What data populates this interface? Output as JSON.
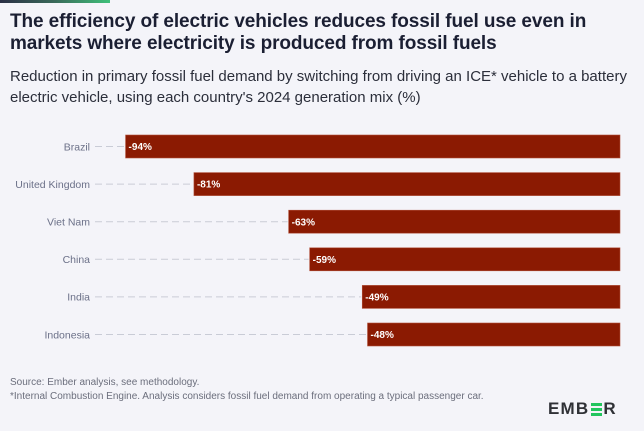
{
  "header": {
    "title": "The efficiency of electric vehicles reduces fossil fuel use even in markets where electricity is produced from fossil fuels",
    "subtitle": "Reduction in primary fossil fuel demand by switching from driving an ICE* vehicle to a battery electric vehicle, using each country's 2024 generation mix (%)"
  },
  "footer": {
    "source": "Source: Ember analysis, see methodology.",
    "note": "*Internal Combustion Engine. Analysis considers fossil fuel demand from operating a typical passenger car."
  },
  "logo": {
    "parts": [
      "EMB",
      "R"
    ],
    "accent_color": "#22c55e"
  },
  "colors": {
    "bar": "#8b1a02",
    "background": "#f4f4f9"
  },
  "chart_data": {
    "type": "bar",
    "orientation": "horizontal",
    "title": "The efficiency of electric vehicles reduces fossil fuel use even in markets where electricity is produced from fossil fuels",
    "subtitle": "Reduction in primary fossil fuel demand by switching from driving an ICE* vehicle to a battery electric vehicle, using each country's 2024 generation mix (%)",
    "categories": [
      "Brazil",
      "United Kingdom",
      "Viet Nam",
      "China",
      "India",
      "Indonesia"
    ],
    "values": [
      -94,
      -81,
      -63,
      -59,
      -49,
      -48
    ],
    "data_labels": [
      "-94%",
      "-81%",
      "-63%",
      "-59%",
      "-49%",
      "-48%"
    ],
    "xlabel": "",
    "ylabel": "",
    "xlim": [
      -100,
      0
    ],
    "grid": false,
    "legend": "none",
    "unit": "%"
  }
}
